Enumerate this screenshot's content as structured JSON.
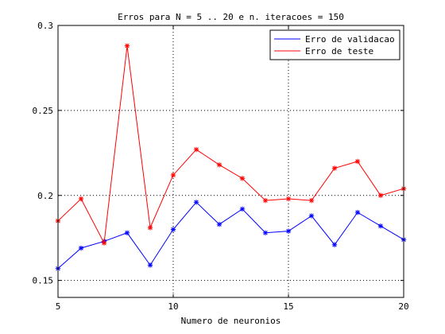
{
  "chart_data": {
    "type": "line",
    "title": "Erros para N = 5 .. 20 e n. iteracoes = 150",
    "xlabel": "Numero de neuronios",
    "ylabel": "",
    "xlim": [
      5,
      20
    ],
    "ylim": [
      0.14,
      0.3
    ],
    "xticks": [
      "5",
      "10",
      "15",
      "20"
    ],
    "yticks": [
      "0.15",
      "0.2",
      "0.25",
      "0.3"
    ],
    "grid": true,
    "legend_position": "top-right",
    "x": [
      5,
      6,
      7,
      8,
      9,
      10,
      11,
      12,
      13,
      14,
      15,
      16,
      17,
      18,
      19,
      20
    ],
    "series": [
      {
        "name": "Erro de validacao",
        "color": "#0000ff",
        "marker": "star",
        "values": [
          0.157,
          0.169,
          0.173,
          0.178,
          0.159,
          0.18,
          0.196,
          0.183,
          0.192,
          0.178,
          0.179,
          0.188,
          0.171,
          0.19,
          0.182,
          0.174
        ]
      },
      {
        "name": "Erro de teste",
        "color": "#ff0000",
        "marker": "star",
        "values": [
          0.185,
          0.198,
          0.172,
          0.288,
          0.181,
          0.212,
          0.227,
          0.218,
          0.21,
          0.197,
          0.198,
          0.197,
          0.216,
          0.22,
          0.2,
          0.204
        ]
      }
    ]
  }
}
